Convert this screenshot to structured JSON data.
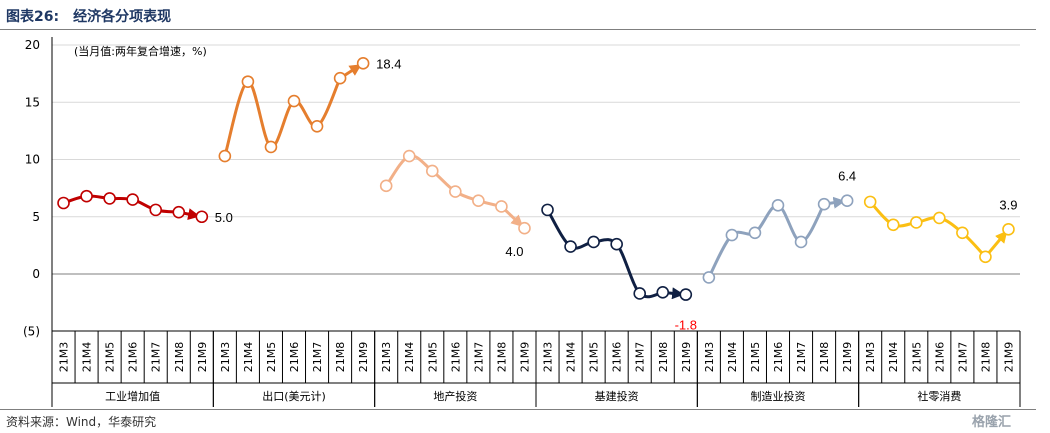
{
  "header": {
    "title": "图表26:　经济各分项表现"
  },
  "footer": {
    "source": "资料来源：Wind，华泰研究",
    "watermark": "格隆汇"
  },
  "chart_data": {
    "type": "line",
    "unit_note": "(当月值:两年复合增速，%)",
    "ylim": [
      -5,
      20
    ],
    "yticks": [
      "20",
      "15",
      "10",
      "5",
      "0",
      "(5)"
    ],
    "ytick_values": [
      20,
      15,
      10,
      5,
      0,
      -5
    ],
    "grid": true,
    "months": [
      "21M3",
      "21M4",
      "21M5",
      "21M6",
      "21M7",
      "21M8",
      "21M9"
    ],
    "series": [
      {
        "name": "工业增加值",
        "color": "#c00000",
        "values": [
          6.2,
          6.8,
          6.6,
          6.5,
          5.6,
          5.4,
          5.0
        ],
        "end_label": "5.0",
        "label_color": "#000000"
      },
      {
        "name": "出口(美元计)",
        "color": "#e57e2e",
        "values": [
          10.3,
          16.8,
          11.1,
          15.1,
          12.9,
          17.1,
          18.4
        ],
        "end_label": "18.4",
        "label_color": "#000000"
      },
      {
        "name": "地产投资",
        "color": "#f2b088",
        "values": [
          7.7,
          10.3,
          9.0,
          7.2,
          6.4,
          5.9,
          4.0
        ],
        "end_label": "4.0",
        "label_color": "#000000"
      },
      {
        "name": "基建投资",
        "color": "#102043",
        "values": [
          5.6,
          2.4,
          2.8,
          2.6,
          -1.7,
          -1.6,
          -1.8
        ],
        "end_label": "-1.8",
        "label_color": "#ff0000"
      },
      {
        "name": "制造业投资",
        "color": "#8ea2bd",
        "values": [
          -0.3,
          3.4,
          3.6,
          6.0,
          2.8,
          6.1,
          6.4
        ],
        "end_label": "6.4",
        "label_color": "#000000"
      },
      {
        "name": "社零消费",
        "color": "#fbbf13",
        "values": [
          6.3,
          4.3,
          4.5,
          4.9,
          3.6,
          1.5,
          3.9
        ],
        "end_label": "3.9",
        "label_color": "#000000"
      }
    ]
  }
}
